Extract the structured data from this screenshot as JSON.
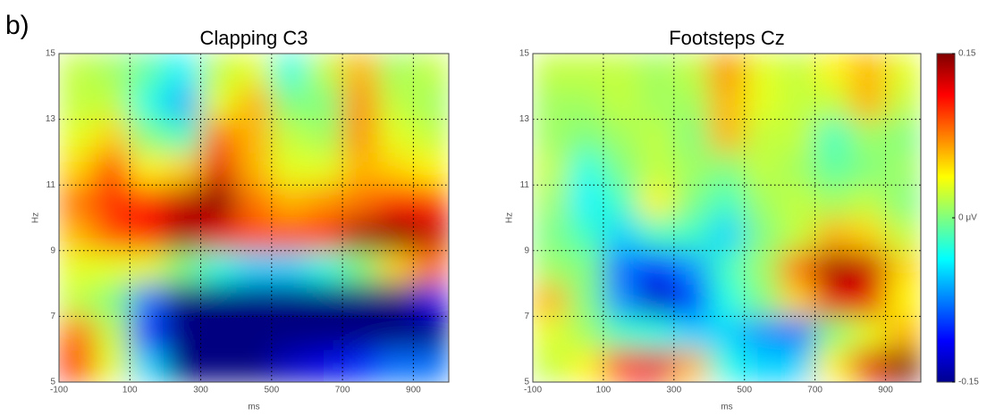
{
  "panel_label": "b)",
  "chart_data": [
    {
      "type": "heatmap",
      "title": "Clapping C3",
      "xlabel": "ms",
      "ylabel": "Hz",
      "colormap": "jet",
      "xbins": [
        -100,
        0,
        100,
        200,
        300,
        400,
        500,
        600,
        700,
        800,
        900,
        1000
      ],
      "ybins": [
        5,
        6,
        7,
        8,
        9,
        10,
        11,
        12,
        13,
        14,
        15
      ],
      "values": [
        [
          0.1,
          0.03,
          -0.05,
          -0.15,
          -0.15,
          -0.15,
          -0.13,
          -0.12,
          -0.1,
          -0.08,
          -0.08
        ],
        [
          0.08,
          0.02,
          -0.1,
          -0.15,
          -0.15,
          -0.15,
          -0.15,
          -0.15,
          -0.15,
          -0.15,
          -0.15
        ],
        [
          0.02,
          0,
          -0.08,
          -0.15,
          -0.15,
          -0.15,
          -0.15,
          -0.15,
          -0.15,
          -0.15,
          -0.12
        ],
        [
          0.03,
          0.03,
          0.03,
          0,
          -0.03,
          -0.05,
          -0.05,
          -0.03,
          0,
          0.05,
          0.08
        ],
        [
          0.06,
          0.09,
          0.11,
          0.14,
          0.12,
          0.09,
          0.09,
          0.1,
          0.14,
          0.15,
          0.13
        ],
        [
          0.08,
          0.1,
          0.1,
          0.13,
          0.15,
          0.08,
          0.06,
          0.07,
          0.08,
          0.1,
          0.1
        ],
        [
          0.05,
          0.09,
          0.04,
          0.05,
          0.12,
          0.06,
          0.03,
          0.03,
          0.06,
          0.05,
          0.04
        ],
        [
          0.03,
          0.05,
          0,
          -0.02,
          0.08,
          0.06,
          0.02,
          0.01,
          0.07,
          0.03,
          0.02
        ],
        [
          0.02,
          0.02,
          -0.03,
          -0.06,
          0.03,
          0.06,
          0,
          0,
          0.07,
          0.02,
          0.01
        ],
        [
          0.02,
          0.01,
          -0.01,
          -0.04,
          0.02,
          0.03,
          -0.03,
          0.02,
          0.06,
          0.01,
          0.02
        ]
      ],
      "xlim": [
        -100,
        1000
      ],
      "xticks": [
        -100,
        100,
        300,
        500,
        700,
        900
      ],
      "ylim": [
        5,
        15
      ],
      "yticks": [
        5,
        7,
        9,
        11,
        13,
        15
      ],
      "grid": true
    },
    {
      "type": "heatmap",
      "title": "Footsteps Cz",
      "xlabel": "ms",
      "ylabel": "Hz",
      "colormap": "jet",
      "xbins": [
        -100,
        0,
        100,
        200,
        300,
        400,
        500,
        600,
        700,
        800,
        900,
        1000
      ],
      "ybins": [
        5,
        6,
        7,
        8,
        9,
        10,
        11,
        12,
        13,
        14,
        15
      ],
      "values": [
        [
          0.02,
          0.04,
          0.1,
          0.12,
          0.06,
          -0.03,
          -0.05,
          -0.05,
          0.04,
          0.12,
          0.15
        ],
        [
          0.03,
          0.01,
          -0.02,
          -0.03,
          -0.05,
          -0.05,
          -0.07,
          -0.08,
          0,
          0.03,
          0.06
        ],
        [
          0.06,
          0,
          -0.07,
          -0.13,
          -0.1,
          -0.03,
          0,
          0.05,
          0.12,
          0.12,
          0.04
        ],
        [
          0.01,
          0,
          -0.08,
          -0.1,
          -0.07,
          -0.02,
          0.01,
          0.08,
          0.14,
          0.13,
          0.05
        ],
        [
          0,
          -0.02,
          -0.05,
          -0.02,
          -0.02,
          -0.05,
          0,
          0.02,
          0.06,
          0.05,
          0.02
        ],
        [
          0.01,
          -0.04,
          -0.02,
          0.04,
          0,
          -0.02,
          0.01,
          0.02,
          0.01,
          0.02,
          0
        ],
        [
          0.02,
          -0.03,
          0,
          0.02,
          0.01,
          0,
          0.02,
          0.01,
          -0.01,
          0,
          0.01
        ],
        [
          0.01,
          0,
          0.01,
          0.02,
          0,
          0.06,
          0.02,
          0.02,
          -0.02,
          0.01,
          0
        ],
        [
          0.01,
          0.01,
          0.02,
          0.01,
          0.01,
          0.06,
          0.03,
          0.02,
          0.02,
          0.06,
          0.02
        ],
        [
          0.02,
          0.02,
          0.02,
          0.01,
          0.02,
          0.07,
          0.03,
          0.02,
          0.04,
          0.06,
          0.03
        ]
      ],
      "xlim": [
        -100,
        1000
      ],
      "xticks": [
        -100,
        100,
        300,
        500,
        700,
        900
      ],
      "ylim": [
        5,
        15
      ],
      "yticks": [
        5,
        7,
        9,
        11,
        13,
        15
      ],
      "grid": true,
      "colorbar": {
        "clim": [
          -0.15,
          0.15
        ],
        "ticks": [
          -0.15,
          {
            "value": 0,
            "label": "0 μV"
          },
          0.15
        ]
      }
    }
  ]
}
